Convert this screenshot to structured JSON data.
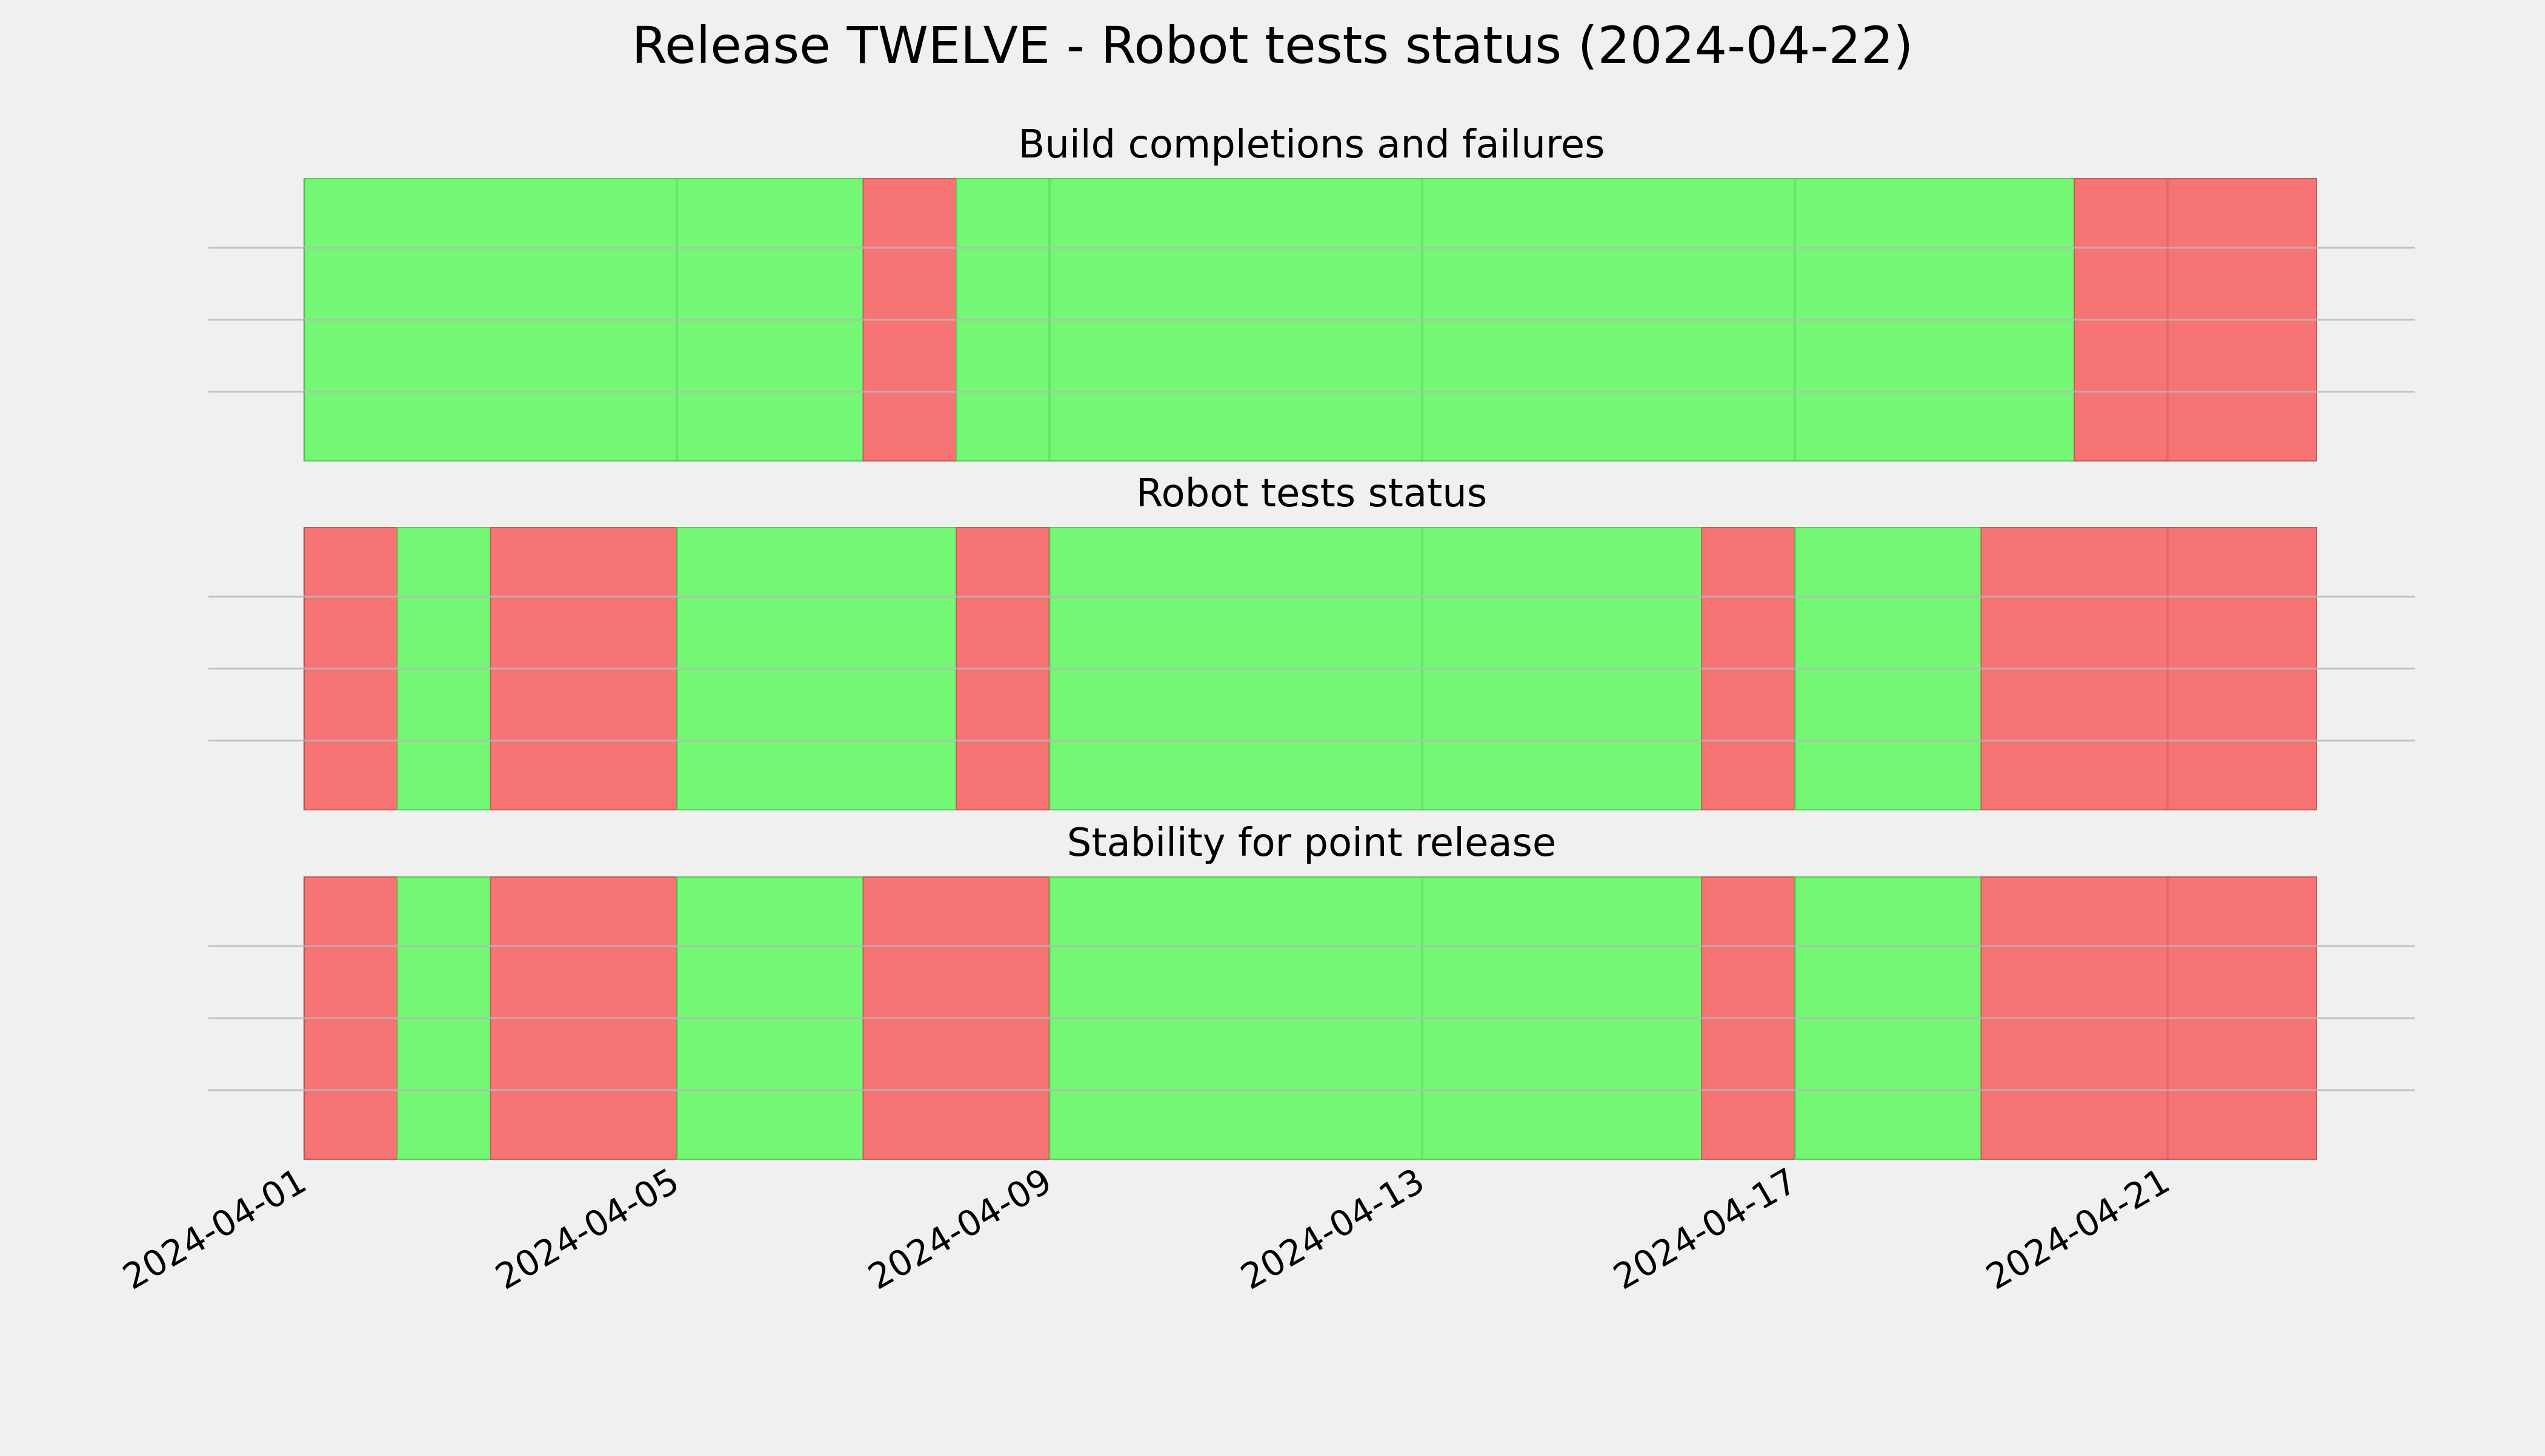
{
  "chart_data": {
    "type": "status-timeline",
    "title": "Release TWELVE - Robot tests status (2024-04-22)",
    "x_range": [
      "2024-04-01",
      "2024-04-23"
    ],
    "x_axis_type": "date",
    "x_ticks": [
      "2024-04-01",
      "2024-04-05",
      "2024-04-09",
      "2024-04-13",
      "2024-04-17",
      "2024-04-21"
    ],
    "grid": true,
    "colors": {
      "pass": "#74f774",
      "fail": "#f77474",
      "background": "#f0f0f0"
    },
    "panels": [
      {
        "title": "Build completions and failures",
        "segments": [
          {
            "start": "2024-04-01",
            "end": "2024-04-07",
            "status": "pass"
          },
          {
            "start": "2024-04-07",
            "end": "2024-04-08",
            "status": "fail"
          },
          {
            "start": "2024-04-08",
            "end": "2024-04-20",
            "status": "pass"
          },
          {
            "start": "2024-04-20",
            "end": "2024-04-22.6",
            "status": "fail"
          }
        ]
      },
      {
        "title": "Robot tests status",
        "segments": [
          {
            "start": "2024-04-01",
            "end": "2024-04-02",
            "status": "fail"
          },
          {
            "start": "2024-04-02",
            "end": "2024-04-03",
            "status": "pass"
          },
          {
            "start": "2024-04-03",
            "end": "2024-04-05",
            "status": "fail"
          },
          {
            "start": "2024-04-05",
            "end": "2024-04-08",
            "status": "pass"
          },
          {
            "start": "2024-04-08",
            "end": "2024-04-09",
            "status": "fail"
          },
          {
            "start": "2024-04-09",
            "end": "2024-04-16",
            "status": "pass"
          },
          {
            "start": "2024-04-16",
            "end": "2024-04-17",
            "status": "fail"
          },
          {
            "start": "2024-04-17",
            "end": "2024-04-19",
            "status": "pass"
          },
          {
            "start": "2024-04-19",
            "end": "2024-04-22.6",
            "status": "fail"
          }
        ]
      },
      {
        "title": "Stability for point release",
        "segments": [
          {
            "start": "2024-04-01",
            "end": "2024-04-02",
            "status": "fail"
          },
          {
            "start": "2024-04-02",
            "end": "2024-04-03",
            "status": "pass"
          },
          {
            "start": "2024-04-03",
            "end": "2024-04-05",
            "status": "fail"
          },
          {
            "start": "2024-04-05",
            "end": "2024-04-07",
            "status": "pass"
          },
          {
            "start": "2024-04-07",
            "end": "2024-04-09",
            "status": "fail"
          },
          {
            "start": "2024-04-09",
            "end": "2024-04-16",
            "status": "pass"
          },
          {
            "start": "2024-04-16",
            "end": "2024-04-17",
            "status": "fail"
          },
          {
            "start": "2024-04-17",
            "end": "2024-04-19",
            "status": "pass"
          },
          {
            "start": "2024-04-19",
            "end": "2024-04-22.6",
            "status": "fail"
          }
        ]
      }
    ]
  }
}
